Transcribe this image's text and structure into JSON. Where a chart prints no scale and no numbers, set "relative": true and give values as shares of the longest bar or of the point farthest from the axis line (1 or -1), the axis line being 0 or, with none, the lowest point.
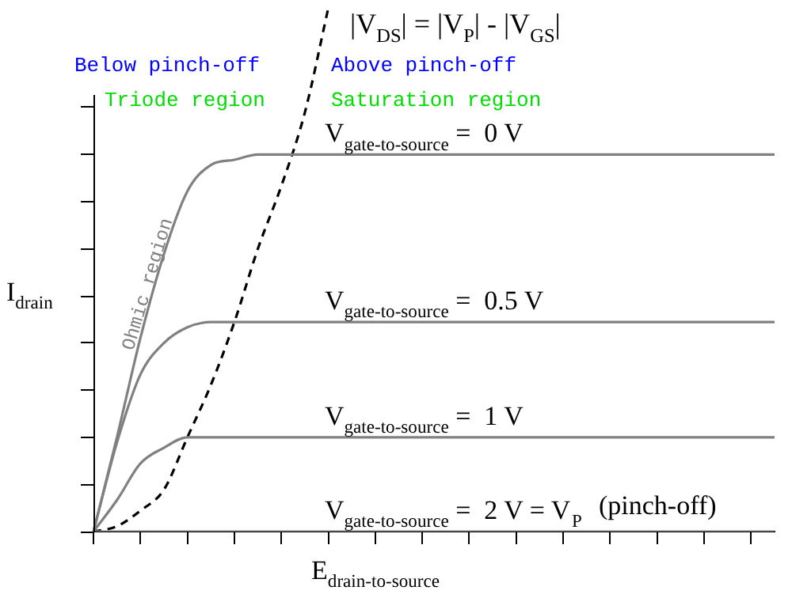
{
  "chart_data": {
    "type": "line",
    "title": "|V$_{DS}$| = |V$_{P}$| - |V$_{GS}$|",
    "xlabel": "E$_{drain-to-source}$",
    "ylabel": "I$_{drain}$",
    "relative": true,
    "marker": "none",
    "annotations": [
      "Below pinch-off",
      "Above pinch-off",
      "Triode region",
      "Saturation region",
      "Ohmic region",
      "(pinch-off)"
    ],
    "categories": [
      null,
      null,
      null,
      null,
      null,
      null,
      null,
      null,
      null,
      null,
      null,
      null,
      null,
      null,
      null,
      null,
      null,
      null,
      null,
      null,
      null,
      null,
      null,
      null,
      null,
      null,
      null,
      null,
      null,
      null
    ],
    "series": [
      {
        "name": "V$_{gate-to-source}$ =  0 V",
        "color": "#808080",
        "values": [
          0,
          0.18,
          0.37,
          0.53,
          0.65,
          0.7,
          0.71,
          0.72,
          0.72,
          0.72,
          0.72,
          0.72,
          0.72,
          0.72,
          0.72,
          0.72,
          0.72,
          0.72,
          0.72,
          0.72,
          0.72,
          0.72,
          0.72,
          0.72,
          0.72,
          0.72,
          0.72,
          0.72,
          0.72,
          0.72
        ]
      },
      {
        "name": "V$_{gate-to-source}$ =  0.5 V",
        "color": "#808080",
        "values": [
          0,
          0.17,
          0.3,
          0.36,
          0.39,
          0.4,
          0.4,
          0.4,
          0.4,
          0.4,
          0.4,
          0.4,
          0.4,
          0.4,
          0.4,
          0.4,
          0.4,
          0.4,
          0.4,
          0.4,
          0.4,
          0.4,
          0.4,
          0.4,
          0.4,
          0.4,
          0.4,
          0.4,
          0.4,
          0.4
        ]
      },
      {
        "name": "V$_{gate-to-source}$ =  1 V",
        "color": "#808080",
        "values": [
          0,
          0.06,
          0.13,
          0.16,
          0.18,
          0.18,
          0.18,
          0.18,
          0.18,
          0.18,
          0.18,
          0.18,
          0.18,
          0.18,
          0.18,
          0.18,
          0.18,
          0.18,
          0.18,
          0.18,
          0.18,
          0.18,
          0.18,
          0.18,
          0.18,
          0.18,
          0.18,
          0.18,
          0.18,
          0.18
        ]
      },
      {
        "name": "V$_{gate-to-source}$ =  2 V = V$_{P}$",
        "color": "#808080",
        "values": [
          0,
          0,
          0,
          0,
          0,
          0,
          0,
          0,
          0,
          0,
          0,
          0,
          0,
          0,
          0,
          0,
          0,
          0,
          0,
          0,
          0,
          0,
          0,
          0,
          0,
          0,
          0,
          0,
          0,
          0
        ]
      },
      {
        "color": "#000000",
        "line_style": "dashed",
        "values": [
          0,
          0.01,
          0.04,
          0.08,
          0.18,
          0.28,
          0.4,
          0.54,
          0.66,
          0.8,
          1,
          null,
          null,
          null,
          null,
          null,
          null,
          null,
          null,
          null,
          null,
          null,
          null,
          null,
          null,
          null,
          null,
          null,
          null,
          null
        ]
      }
    ]
  }
}
